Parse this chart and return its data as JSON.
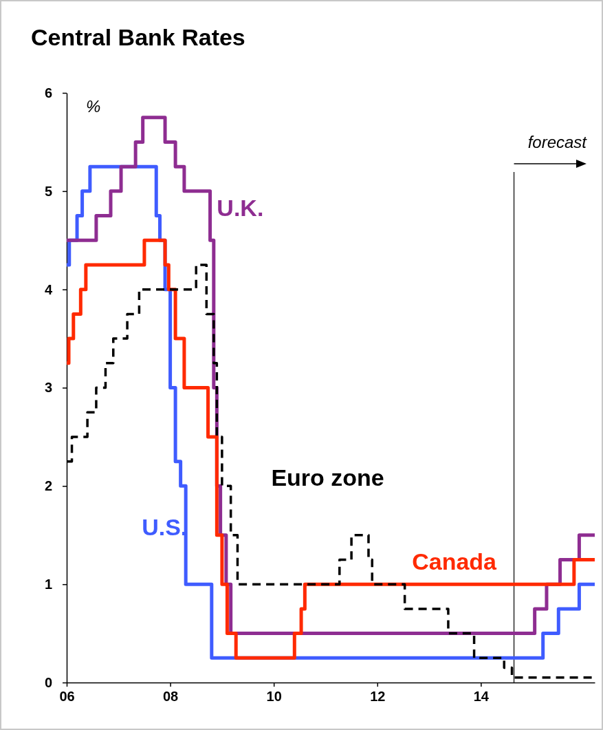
{
  "chart_data": {
    "type": "step",
    "title": "Central Bank Rates",
    "ylabel": "%",
    "xlim": [
      6,
      16.2
    ],
    "ylim": [
      0,
      6
    ],
    "xticks": [
      {
        "value": 6,
        "label": "06"
      },
      {
        "value": 8,
        "label": "08"
      },
      {
        "value": 10,
        "label": "10"
      },
      {
        "value": 12,
        "label": "12"
      },
      {
        "value": 14,
        "label": "14"
      }
    ],
    "yticks": [
      0,
      1,
      2,
      3,
      4,
      5,
      6
    ],
    "grid": false,
    "marker": "none",
    "ref_lines": [
      {
        "axis": "x",
        "value": 14.64,
        "label": "forecast",
        "color": "#000000"
      }
    ],
    "series": [
      {
        "name": "U.S.",
        "color": "#3f5cff",
        "line_style": "solid",
        "x": [
          6,
          6.05,
          6.2,
          6.3,
          6.45,
          7.73,
          7.8,
          7.9,
          8,
          8.1,
          8.2,
          8.3,
          8.8,
          8.9,
          15.2,
          15.5,
          15.9,
          16.2
        ],
        "values": [
          4.25,
          4.5,
          4.75,
          5,
          5.25,
          4.75,
          4.5,
          4,
          3,
          2.25,
          2,
          1,
          0.25,
          0.25,
          0.5,
          0.75,
          1,
          1
        ]
      },
      {
        "name": "U.K.",
        "color": "#8e2d91",
        "line_style": "solid",
        "x": [
          6,
          6.57,
          6.85,
          7.05,
          7.33,
          7.47,
          7.9,
          8.1,
          8.27,
          8.77,
          8.84,
          8.9,
          8.97,
          9.08,
          9.17,
          15.04,
          15.27,
          15.53,
          15.9,
          16.2
        ],
        "values": [
          4.5,
          4.75,
          5,
          5.25,
          5.5,
          5.75,
          5.5,
          5.25,
          5,
          4.5,
          3,
          2,
          1.5,
          1,
          0.5,
          0.75,
          1,
          1.25,
          1.5,
          1.5
        ]
      },
      {
        "name": "Canada",
        "color": "#ff2a00",
        "line_style": "solid",
        "x": [
          6,
          6.04,
          6.13,
          6.27,
          6.37,
          7.5,
          7.9,
          7.97,
          8.1,
          8.27,
          8.73,
          8.9,
          9,
          9.1,
          9.27,
          10.4,
          10.53,
          10.6,
          10.7,
          15.8,
          16.2
        ],
        "values": [
          3.25,
          3.5,
          3.75,
          4,
          4.25,
          4.5,
          4.25,
          4,
          3.5,
          3,
          2.5,
          1.5,
          1,
          0.5,
          0.25,
          0.5,
          0.75,
          1,
          1,
          1.25,
          1.25
        ]
      },
      {
        "name": "Euro zone",
        "color": "#000000",
        "line_style": "dashed",
        "x": [
          6,
          6.1,
          6.4,
          6.57,
          6.75,
          6.9,
          7.17,
          7.4,
          8.5,
          8.7,
          8.84,
          8.9,
          9,
          9.17,
          9.3,
          11.27,
          11.5,
          11.83,
          11.9,
          12.53,
          13.37,
          13.87,
          14.45,
          14.6,
          16.2
        ],
        "values": [
          2.25,
          2.5,
          2.75,
          3,
          3.25,
          3.5,
          3.75,
          4,
          4.25,
          3.75,
          3.25,
          2.5,
          2,
          1.5,
          1,
          1.25,
          1.5,
          1.25,
          1,
          0.75,
          0.5,
          0.25,
          0.15,
          0.05,
          0.05
        ]
      }
    ]
  }
}
